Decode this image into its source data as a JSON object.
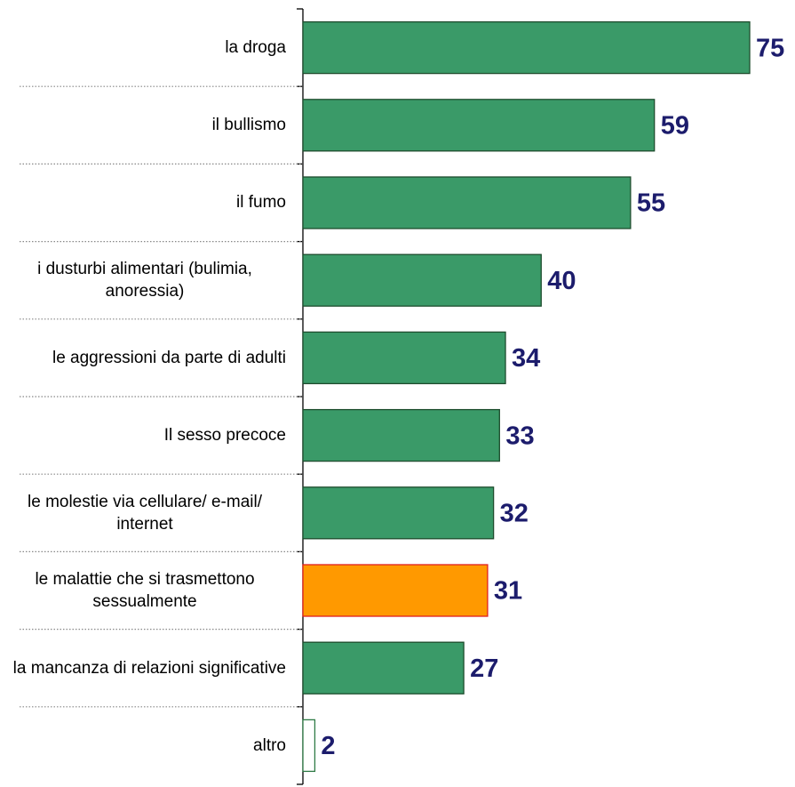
{
  "chart_data": {
    "type": "bar",
    "orientation": "horizontal",
    "categories": [
      "la droga",
      "il bullismo",
      "il fumo",
      "i dusturbi alimentari (bulimia, anoressia)",
      "le aggressioni da parte di adulti",
      "Il sesso precoce",
      "le molestie via cellulare/ e-mail/ internet",
      "le malattie che si trasmettono sessualmente",
      "la mancanza di relazioni significative",
      "altro"
    ],
    "values": [
      75,
      59,
      55,
      40,
      34,
      33,
      32,
      31,
      27,
      2
    ],
    "colors": [
      "#3a9a68",
      "#3a9a68",
      "#3a9a68",
      "#3a9a68",
      "#3a9a68",
      "#3a9a68",
      "#3a9a68",
      "#ff9900",
      "#3a9a68",
      "#ffffff"
    ],
    "edge_colors": [
      "#1e4d2e",
      "#1e4d2e",
      "#1e4d2e",
      "#1e4d2e",
      "#1e4d2e",
      "#1e4d2e",
      "#1e4d2e",
      "#e02020",
      "#1e4d2e",
      "#2e7a45"
    ]
  }
}
